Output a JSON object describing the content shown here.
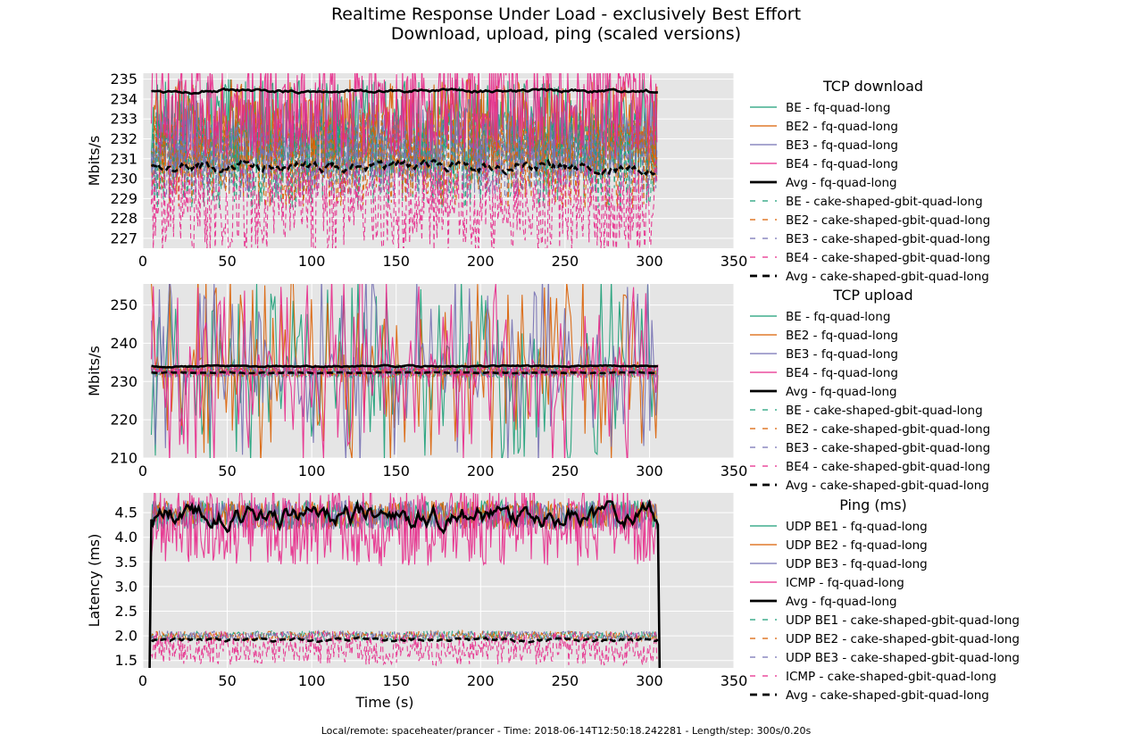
{
  "title": "Realtime Response Under Load - exclusively Best Effort",
  "subtitle": "Download, upload, ping (scaled versions)",
  "footer": "Local/remote: spaceheater/prancer - Time: 2018-06-14T12:50:18.242281 - Length/step: 300s/0.20s",
  "colors": {
    "BE": "#1b9e77",
    "BE2": "#d95f02",
    "BE3": "#7570b3",
    "BE4": "#e7298a",
    "Avg": "#000000",
    "plot_bg": "#e5e5e5",
    "grid": "#ffffff"
  },
  "chart_data": [
    {
      "type": "line",
      "legend_title": "TCP download",
      "ylabel": "Mbits/s",
      "xlabel": "",
      "xlim": [
        0,
        350
      ],
      "ylim": [
        226.5,
        235.3
      ],
      "xticks": [
        "0",
        "50",
        "100",
        "150",
        "200",
        "250",
        "300",
        "350"
      ],
      "yticks": [
        "227",
        "228",
        "229",
        "230",
        "231",
        "232",
        "233",
        "234",
        "235"
      ],
      "grid": true,
      "legend_position": "right",
      "series": [
        {
          "name": "BE - fq-quad-long",
          "key": "BE",
          "dash": "solid",
          "behavior": "noise",
          "center": 232.5,
          "spread": 2.5,
          "start": 5,
          "end": 305
        },
        {
          "name": "BE2 - fq-quad-long",
          "key": "BE2",
          "dash": "solid",
          "behavior": "noise",
          "center": 232.5,
          "spread": 2.5,
          "start": 5,
          "end": 305
        },
        {
          "name": "BE3 - fq-quad-long",
          "key": "BE3",
          "dash": "solid",
          "behavior": "noise",
          "center": 232.0,
          "spread": 2.0,
          "start": 5,
          "end": 305
        },
        {
          "name": "BE4 - fq-quad-long",
          "key": "BE4",
          "dash": "solid",
          "behavior": "noise",
          "center": 233.5,
          "spread": 2.5,
          "start": 5,
          "end": 305
        },
        {
          "name": "Avg - fq-quad-long",
          "key": "Avg",
          "dash": "solid",
          "behavior": "avg",
          "center": 234.4,
          "spread": 0.12,
          "start": 5,
          "end": 305
        },
        {
          "name": "BE - cake-shaped-gbit-quad-long",
          "key": "BE",
          "dash": "dashed",
          "behavior": "noise",
          "center": 231.0,
          "spread": 2.5,
          "start": 5,
          "end": 305
        },
        {
          "name": "BE2 - cake-shaped-gbit-quad-long",
          "key": "BE2",
          "dash": "dashed",
          "behavior": "noise",
          "center": 231.0,
          "spread": 2.5,
          "start": 5,
          "end": 305
        },
        {
          "name": "BE3 - cake-shaped-gbit-quad-long",
          "key": "BE3",
          "dash": "dashed",
          "behavior": "noise",
          "center": 231.0,
          "spread": 2.0,
          "start": 5,
          "end": 305
        },
        {
          "name": "BE4 - cake-shaped-gbit-quad-long",
          "key": "BE4",
          "dash": "dashed",
          "behavior": "noise",
          "center": 228.5,
          "spread": 2.5,
          "start": 5,
          "end": 305
        },
        {
          "name": "Avg - cake-shaped-gbit-quad-long",
          "key": "Avg",
          "dash": "dashed",
          "behavior": "avg",
          "center": 230.6,
          "spread": 0.4,
          "start": 5,
          "end": 305
        }
      ]
    },
    {
      "type": "line",
      "legend_title": "TCP upload",
      "ylabel": "Mbits/s",
      "xlabel": "",
      "xlim": [
        0,
        350
      ],
      "ylim": [
        210,
        255.5
      ],
      "xticks": [
        "0",
        "50",
        "100",
        "150",
        "200",
        "250",
        "300",
        "350"
      ],
      "yticks": [
        "210",
        "220",
        "230",
        "240",
        "250"
      ],
      "grid": true,
      "legend_position": "right",
      "series": [
        {
          "name": "BE - fq-quad-long",
          "key": "BE",
          "dash": "solid",
          "behavior": "spiky",
          "center": 233,
          "spread": 25,
          "start": 5,
          "end": 305
        },
        {
          "name": "BE2 - fq-quad-long",
          "key": "BE2",
          "dash": "solid",
          "behavior": "spiky",
          "center": 233,
          "spread": 25,
          "start": 5,
          "end": 305
        },
        {
          "name": "BE3 - fq-quad-long",
          "key": "BE3",
          "dash": "solid",
          "behavior": "spiky",
          "center": 233,
          "spread": 25,
          "start": 5,
          "end": 305
        },
        {
          "name": "BE4 - fq-quad-long",
          "key": "BE4",
          "dash": "solid",
          "behavior": "spiky",
          "center": 233,
          "spread": 25,
          "start": 5,
          "end": 305
        },
        {
          "name": "Avg - fq-quad-long",
          "key": "Avg",
          "dash": "solid",
          "behavior": "avg",
          "center": 234.0,
          "spread": 0.3,
          "start": 5,
          "end": 305
        },
        {
          "name": "BE - cake-shaped-gbit-quad-long",
          "key": "BE",
          "dash": "dashed",
          "behavior": "noise",
          "center": 232.5,
          "spread": 1.5,
          "start": 5,
          "end": 305
        },
        {
          "name": "BE2 - cake-shaped-gbit-quad-long",
          "key": "BE2",
          "dash": "dashed",
          "behavior": "noise",
          "center": 232.5,
          "spread": 1.5,
          "start": 5,
          "end": 305
        },
        {
          "name": "BE3 - cake-shaped-gbit-quad-long",
          "key": "BE3",
          "dash": "dashed",
          "behavior": "noise",
          "center": 232.5,
          "spread": 1.5,
          "start": 5,
          "end": 305
        },
        {
          "name": "BE4 - cake-shaped-gbit-quad-long",
          "key": "BE4",
          "dash": "dashed",
          "behavior": "noise",
          "center": 232.5,
          "spread": 1.5,
          "start": 5,
          "end": 305
        },
        {
          "name": "Avg - cake-shaped-gbit-quad-long",
          "key": "Avg",
          "dash": "dashed",
          "behavior": "avg",
          "center": 232.3,
          "spread": 0.2,
          "start": 5,
          "end": 305
        }
      ]
    },
    {
      "type": "line",
      "legend_title": "Ping (ms)",
      "ylabel": "Latency (ms)",
      "xlabel": "Time (s)",
      "xlim": [
        0,
        350
      ],
      "ylim": [
        1.35,
        4.9
      ],
      "xticks": [
        "0",
        "50",
        "100",
        "150",
        "200",
        "250",
        "300",
        "350"
      ],
      "yticks": [
        "1.5",
        "2.0",
        "2.5",
        "3.0",
        "3.5",
        "4.0",
        "4.5"
      ],
      "grid": true,
      "legend_position": "right",
      "series": [
        {
          "name": "UDP BE1 - fq-quad-long",
          "key": "BE",
          "dash": "solid",
          "behavior": "noise",
          "center": 4.45,
          "spread": 0.3,
          "start": 5,
          "end": 305
        },
        {
          "name": "UDP BE2 - fq-quad-long",
          "key": "BE2",
          "dash": "solid",
          "behavior": "noise",
          "center": 4.45,
          "spread": 0.3,
          "start": 5,
          "end": 305
        },
        {
          "name": "UDP BE3 - fq-quad-long",
          "key": "BE3",
          "dash": "solid",
          "behavior": "noise",
          "center": 4.45,
          "spread": 0.3,
          "start": 5,
          "end": 305
        },
        {
          "name": "ICMP - fq-quad-long",
          "key": "BE4",
          "dash": "solid",
          "behavior": "noise",
          "center": 4.2,
          "spread": 0.8,
          "start": 5,
          "end": 305
        },
        {
          "name": "Avg - fq-quad-long",
          "key": "Avg",
          "dash": "solid",
          "behavior": "avg",
          "center": 4.45,
          "spread": 0.3,
          "start": 5,
          "end": 305
        },
        {
          "name": "UDP BE1 - cake-shaped-gbit-quad-long",
          "key": "BE",
          "dash": "dashed",
          "behavior": "noise",
          "center": 2.0,
          "spread": 0.1,
          "start": 5,
          "end": 305
        },
        {
          "name": "UDP BE2 - cake-shaped-gbit-quad-long",
          "key": "BE2",
          "dash": "dashed",
          "behavior": "noise",
          "center": 2.0,
          "spread": 0.1,
          "start": 5,
          "end": 305
        },
        {
          "name": "UDP BE3 - cake-shaped-gbit-quad-long",
          "key": "BE3",
          "dash": "dashed",
          "behavior": "noise",
          "center": 2.0,
          "spread": 0.1,
          "start": 5,
          "end": 305
        },
        {
          "name": "ICMP - cake-shaped-gbit-quad-long",
          "key": "BE4",
          "dash": "dashed",
          "behavior": "noise",
          "center": 1.75,
          "spread": 0.35,
          "start": 5,
          "end": 305
        },
        {
          "name": "Avg - cake-shaped-gbit-quad-long",
          "key": "Avg",
          "dash": "dashed",
          "behavior": "avg",
          "center": 1.92,
          "spread": 0.05,
          "start": 5,
          "end": 305
        }
      ]
    }
  ]
}
